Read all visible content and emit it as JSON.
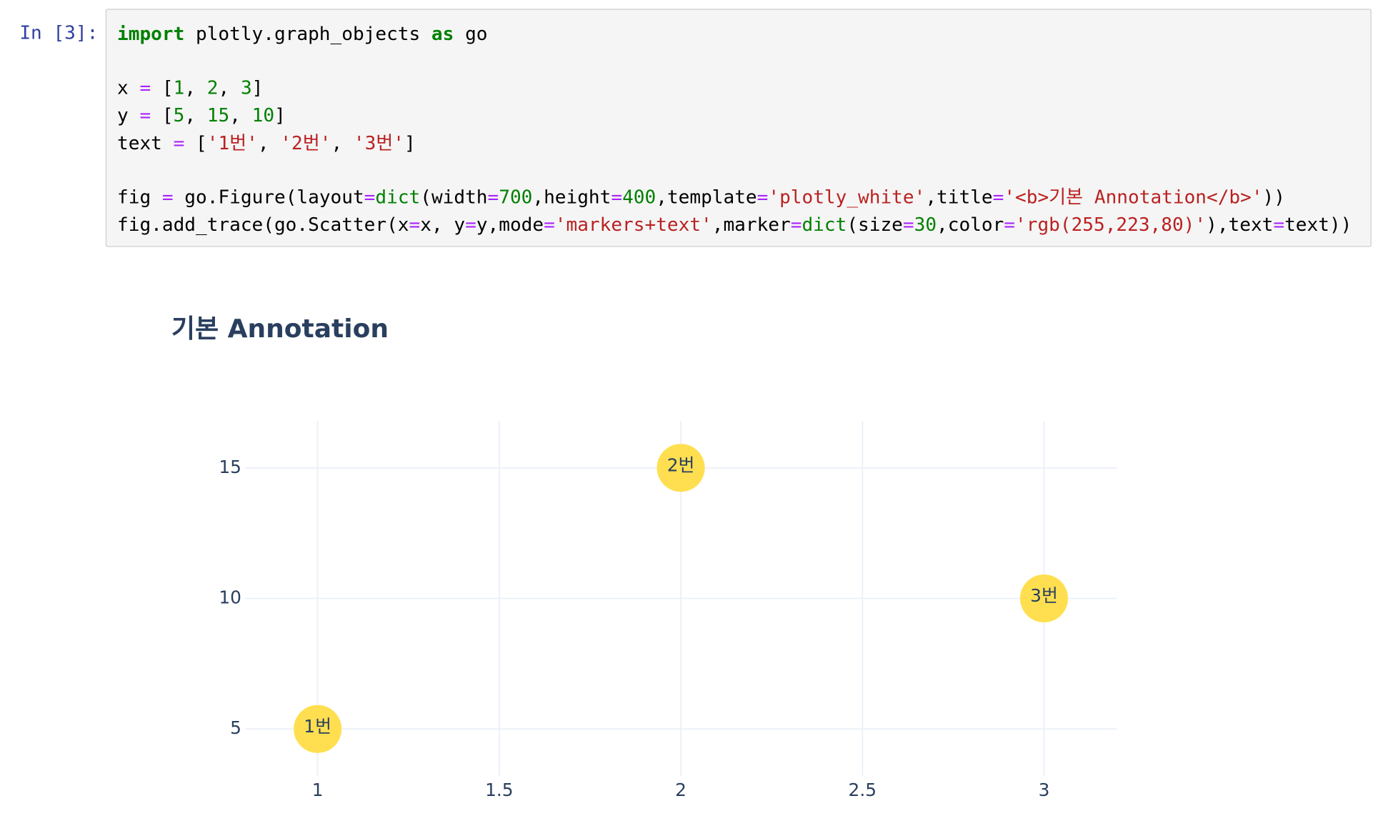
{
  "prompt": "In [3]:",
  "code": {
    "lines": [
      [
        {
          "text": "import",
          "color": "#008000",
          "bold": true
        },
        {
          "text": " plotly.graph_objects "
        },
        {
          "text": "as",
          "color": "#008000",
          "bold": true
        },
        {
          "text": " go"
        }
      ],
      [],
      [
        {
          "text": "x "
        },
        {
          "text": "=",
          "color": "#AA22FF"
        },
        {
          "text": " ["
        },
        {
          "text": "1",
          "color": "#008000"
        },
        {
          "text": ", "
        },
        {
          "text": "2",
          "color": "#008000"
        },
        {
          "text": ", "
        },
        {
          "text": "3",
          "color": "#008000"
        },
        {
          "text": "]"
        }
      ],
      [
        {
          "text": "y "
        },
        {
          "text": "=",
          "color": "#AA22FF"
        },
        {
          "text": " ["
        },
        {
          "text": "5",
          "color": "#008000"
        },
        {
          "text": ", "
        },
        {
          "text": "15",
          "color": "#008000"
        },
        {
          "text": ", "
        },
        {
          "text": "10",
          "color": "#008000"
        },
        {
          "text": "]"
        }
      ],
      [
        {
          "text": "text "
        },
        {
          "text": "=",
          "color": "#AA22FF"
        },
        {
          "text": " ["
        },
        {
          "text": "'1번'",
          "color": "#BA2121"
        },
        {
          "text": ", "
        },
        {
          "text": "'2번'",
          "color": "#BA2121"
        },
        {
          "text": ", "
        },
        {
          "text": "'3번'",
          "color": "#BA2121"
        },
        {
          "text": "]"
        }
      ],
      [],
      [
        {
          "text": "fig "
        },
        {
          "text": "=",
          "color": "#AA22FF"
        },
        {
          "text": " go.Figure(layout"
        },
        {
          "text": "=",
          "color": "#AA22FF"
        },
        {
          "text": "dict",
          "color": "#008000"
        },
        {
          "text": "(width"
        },
        {
          "text": "=",
          "color": "#AA22FF"
        },
        {
          "text": "700",
          "color": "#008000"
        },
        {
          "text": ",height"
        },
        {
          "text": "=",
          "color": "#AA22FF"
        },
        {
          "text": "400",
          "color": "#008000"
        },
        {
          "text": ",template"
        },
        {
          "text": "=",
          "color": "#AA22FF"
        },
        {
          "text": "'plotly_white'",
          "color": "#BA2121"
        },
        {
          "text": ",title"
        },
        {
          "text": "=",
          "color": "#AA22FF"
        },
        {
          "text": "'<b>기본 Annotation</b>'",
          "color": "#BA2121"
        },
        {
          "text": "))"
        }
      ],
      [
        {
          "text": "fig.add_trace(go.Scatter(x"
        },
        {
          "text": "=",
          "color": "#AA22FF"
        },
        {
          "text": "x, y"
        },
        {
          "text": "=",
          "color": "#AA22FF"
        },
        {
          "text": "y,mode"
        },
        {
          "text": "=",
          "color": "#AA22FF"
        },
        {
          "text": "'markers+text'",
          "color": "#BA2121"
        },
        {
          "text": ",marker"
        },
        {
          "text": "=",
          "color": "#AA22FF"
        },
        {
          "text": "dict",
          "color": "#008000"
        },
        {
          "text": "(size"
        },
        {
          "text": "=",
          "color": "#AA22FF"
        },
        {
          "text": "30",
          "color": "#008000"
        },
        {
          "text": ",color"
        },
        {
          "text": "=",
          "color": "#AA22FF"
        },
        {
          "text": "'rgb(255,223,80)'",
          "color": "#BA2121"
        },
        {
          "text": "),text"
        },
        {
          "text": "=",
          "color": "#AA22FF"
        },
        {
          "text": "text))"
        }
      ]
    ]
  },
  "chart_data": {
    "type": "scatter",
    "title": "기본 Annotation",
    "x": [
      1,
      2,
      3
    ],
    "y": [
      5,
      15,
      10
    ],
    "text": [
      "1번",
      "2번",
      "3번"
    ],
    "color": "rgb(255,223,80)",
    "xlim": [
      0.8,
      3.2
    ],
    "ylim": [
      3.2,
      16.8
    ],
    "xticks": [
      1,
      1.5,
      2,
      2.5,
      3
    ],
    "yticks": [
      5,
      10,
      15
    ],
    "grid": true
  }
}
